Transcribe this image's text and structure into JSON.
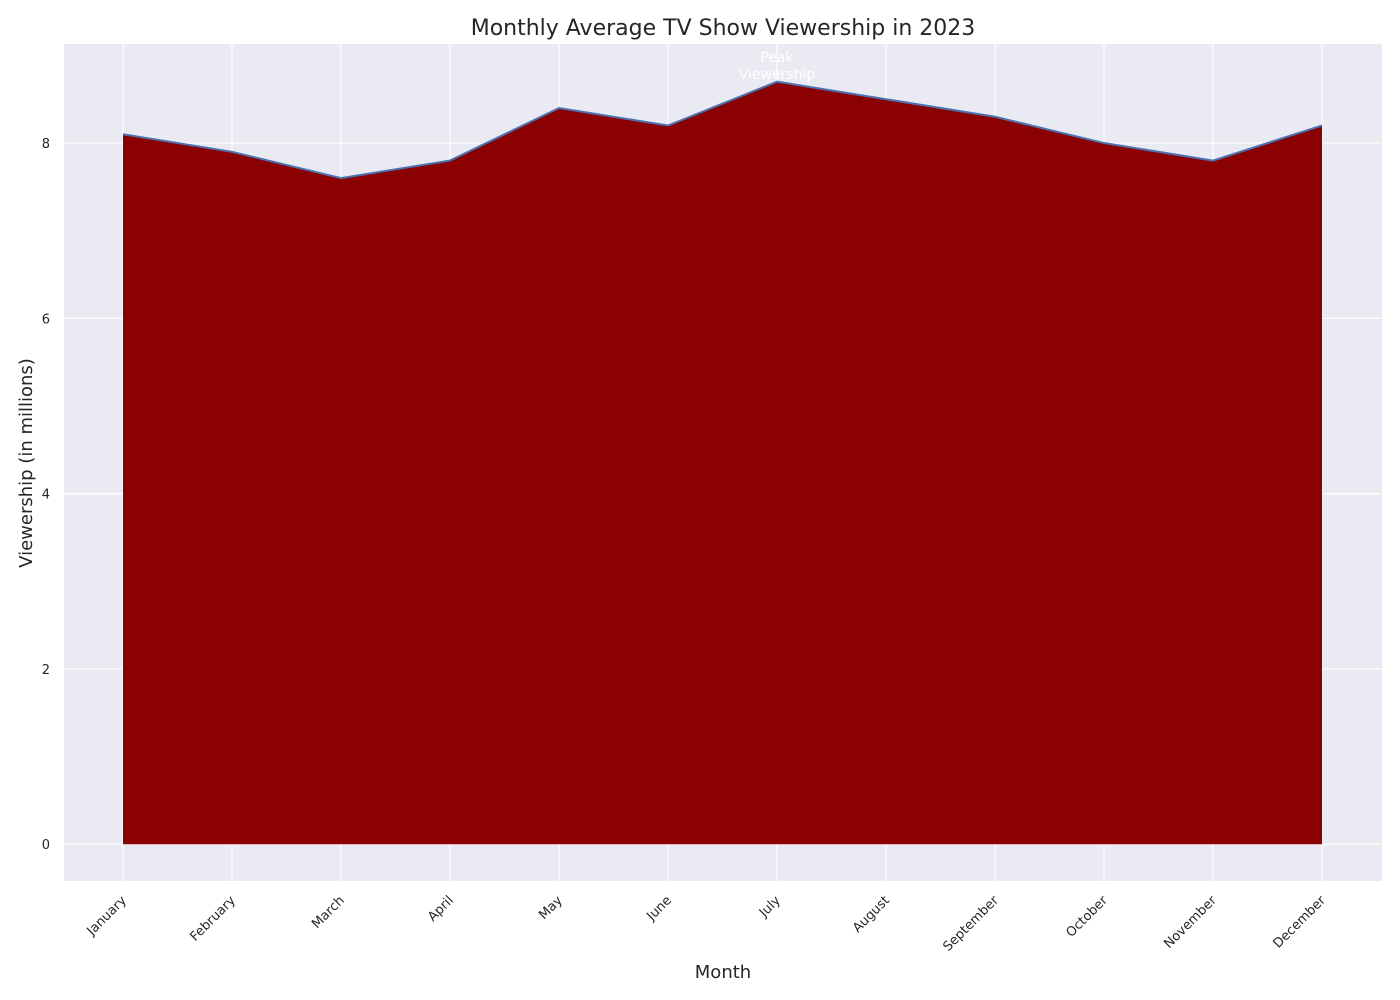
{
  "chart_data": {
    "type": "area",
    "title": "Monthly Average TV Show Viewership in 2023",
    "xlabel": "Month",
    "ylabel": "Viewership (in millions)",
    "categories": [
      "January",
      "February",
      "March",
      "April",
      "May",
      "June",
      "July",
      "August",
      "September",
      "October",
      "November",
      "December"
    ],
    "values": [
      8.1,
      7.9,
      7.6,
      7.8,
      8.4,
      8.2,
      8.7,
      8.5,
      8.3,
      8.0,
      7.8,
      8.2
    ],
    "ylim": [
      -0.42,
      9.13
    ],
    "yticks": [
      0,
      2,
      4,
      6,
      8
    ],
    "grid": true,
    "annotation": {
      "lines": [
        "Peak",
        "Viewership"
      ],
      "category": "July",
      "value": 8.7
    },
    "colors": {
      "fill": "#8b0000",
      "line": "#4c72b0",
      "background": "#eaeaf2",
      "grid": "#ffffff"
    }
  }
}
